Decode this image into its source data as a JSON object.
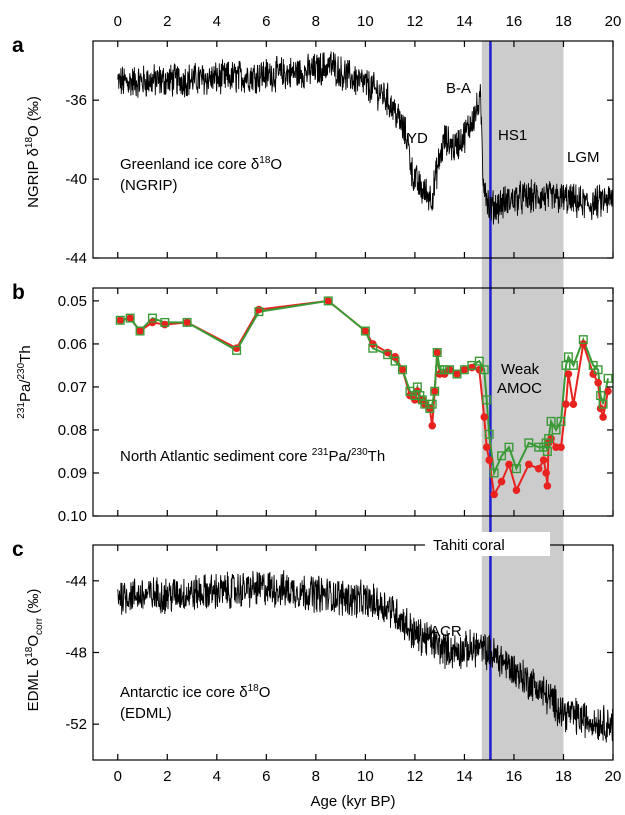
{
  "chart_data": [
    {
      "type": "line",
      "panel": "a",
      "ylabel": "NGRIP δ18O (‰)",
      "description": [
        "Greenland ice core δ18O",
        "(NGRIP)"
      ],
      "annotations": [
        "B-A",
        "YD",
        "HS1",
        "LGM"
      ],
      "xlim": [
        -1,
        20
      ],
      "ylim": [
        -44,
        -33
      ],
      "y_reversed": false,
      "yticks": [
        -36,
        -40,
        -44
      ],
      "xticks_top": [
        0,
        2,
        4,
        6,
        8,
        10,
        12,
        14,
        16,
        18,
        20
      ],
      "series": [
        {
          "color": "#000000",
          "anchors": [
            [
              0,
              -35.1
            ],
            [
              2,
              -35.0
            ],
            [
              4,
              -34.9
            ],
            [
              6,
              -34.7
            ],
            [
              7.5,
              -34.6
            ],
            [
              8.2,
              -34.4
            ],
            [
              8.6,
              -34.2
            ],
            [
              9,
              -34.6
            ],
            [
              10,
              -35.2
            ],
            [
              10.8,
              -35.8
            ],
            [
              11.3,
              -36.8
            ],
            [
              11.7,
              -38.0
            ],
            [
              11.9,
              -39.8
            ],
            [
              12.3,
              -40.6
            ],
            [
              12.7,
              -40.9
            ],
            [
              12.9,
              -39.5
            ],
            [
              13.2,
              -38.0
            ],
            [
              13.6,
              -38.4
            ],
            [
              14.0,
              -37.8
            ],
            [
              14.5,
              -36.5
            ],
            [
              14.65,
              -36.0
            ],
            [
              14.75,
              -39.8
            ],
            [
              15,
              -41.5
            ],
            [
              16,
              -41.0
            ],
            [
              17,
              -40.9
            ],
            [
              18,
              -41.0
            ],
            [
              19,
              -41.3
            ],
            [
              20,
              -41.0
            ]
          ],
          "noise": 0.75
        }
      ]
    },
    {
      "type": "line",
      "panel": "b",
      "ylabel": "231Pa/230Th",
      "description": "North Atlantic sediment core 231Pa/230Th",
      "annotations": [
        "Weak",
        "AMOC"
      ],
      "xlim": [
        -1,
        20
      ],
      "ylim": [
        0.047,
        0.1
      ],
      "y_reversed": true,
      "yticks": [
        0.05,
        0.06,
        0.07,
        0.08,
        0.09,
        0.1
      ],
      "ytick_labels": [
        "0.05",
        "0.06",
        "0.07",
        "0.08",
        "0.09",
        "0.10"
      ],
      "series": [
        {
          "color": "#e8231f",
          "marker": "circle",
          "x": [
            0.1,
            0.5,
            0.9,
            1.4,
            1.9,
            2.8,
            4.8,
            5.7,
            8.5,
            10.0,
            10.3,
            10.9,
            11.2,
            11.5,
            11.8,
            12.0,
            12.1,
            12.2,
            12.3,
            12.4,
            12.6,
            12.7,
            12.8,
            12.9,
            13.0,
            13.2,
            13.4,
            13.7,
            14.0,
            14.3,
            14.6,
            14.8,
            14.9,
            15.0,
            15.2,
            15.5,
            15.8,
            16.1,
            16.6,
            17.0,
            17.2,
            17.3,
            17.35,
            17.4,
            17.5,
            17.7,
            17.9,
            18.1,
            18.2,
            18.4,
            18.8,
            19.2,
            19.4,
            19.5,
            19.6,
            19.8
          ],
          "y": [
            0.0545,
            0.054,
            0.057,
            0.055,
            0.0555,
            0.055,
            0.061,
            0.052,
            0.05,
            0.057,
            0.06,
            0.062,
            0.063,
            0.066,
            0.072,
            0.073,
            0.071,
            0.073,
            0.073,
            0.074,
            0.075,
            0.079,
            0.071,
            0.062,
            0.067,
            0.067,
            0.066,
            0.067,
            0.066,
            0.0655,
            0.066,
            0.077,
            0.084,
            0.087,
            0.095,
            0.092,
            0.088,
            0.094,
            0.088,
            0.089,
            0.087,
            0.09,
            0.093,
            0.083,
            0.082,
            0.084,
            0.084,
            0.074,
            0.067,
            0.074,
            0.06,
            0.067,
            0.069,
            0.075,
            0.077,
            0.071
          ]
        },
        {
          "color": "#3a9a35",
          "marker": "square-open",
          "x": [
            0.1,
            0.5,
            0.9,
            1.4,
            1.9,
            2.8,
            4.8,
            5.7,
            8.5,
            10.0,
            10.3,
            10.9,
            11.2,
            11.5,
            11.8,
            12.0,
            12.1,
            12.2,
            12.3,
            12.4,
            12.6,
            12.7,
            12.8,
            12.9,
            13.0,
            13.2,
            13.4,
            13.7,
            14.0,
            14.3,
            14.6,
            14.8,
            14.9,
            15.0,
            15.2,
            15.5,
            15.8,
            16.1,
            16.6,
            17.0,
            17.2,
            17.3,
            17.35,
            17.4,
            17.5,
            17.7,
            17.9,
            18.1,
            18.2,
            18.4,
            18.8,
            19.2,
            19.4,
            19.5,
            19.6,
            19.8
          ],
          "y": [
            0.0545,
            0.054,
            0.057,
            0.054,
            0.055,
            0.055,
            0.0615,
            0.0525,
            0.05,
            0.057,
            0.061,
            0.0625,
            0.064,
            0.066,
            0.071,
            0.072,
            0.07,
            0.072,
            0.073,
            0.074,
            0.075,
            0.074,
            0.071,
            0.062,
            0.066,
            0.066,
            0.066,
            0.067,
            0.066,
            0.065,
            0.064,
            0.066,
            0.073,
            0.081,
            0.09,
            0.086,
            0.084,
            0.089,
            0.083,
            0.084,
            0.084,
            0.083,
            0.085,
            0.082,
            0.078,
            0.08,
            0.078,
            0.065,
            0.063,
            0.065,
            0.059,
            0.065,
            0.066,
            0.072,
            0.074,
            0.068
          ]
        }
      ]
    },
    {
      "type": "line",
      "panel": "c",
      "ylabel": "EDML δ18Ocorr (‰)",
      "description": [
        "Antarctic ice core δ18O",
        "(EDML)"
      ],
      "annotations": [
        "ACR"
      ],
      "xlim": [
        -1,
        20
      ],
      "ylim": [
        -54,
        -42
      ],
      "y_reversed": false,
      "yticks": [
        -44,
        -48,
        -52
      ],
      "xlabel": "Age (kyr BP)",
      "xticks_bottom": [
        0,
        2,
        4,
        6,
        8,
        10,
        12,
        14,
        16,
        18,
        20
      ],
      "series": [
        {
          "color": "#000000",
          "anchors": [
            [
              0,
              -44.8
            ],
            [
              2,
              -44.8
            ],
            [
              4,
              -44.6
            ],
            [
              6,
              -44.4
            ],
            [
              8,
              -44.7
            ],
            [
              10,
              -45.1
            ],
            [
              11,
              -45.5
            ],
            [
              11.5,
              -46.2
            ],
            [
              12,
              -47.0
            ],
            [
              12.5,
              -47.2
            ],
            [
              13,
              -47.7
            ],
            [
              13.5,
              -47.9
            ],
            [
              14,
              -47.9
            ],
            [
              14.5,
              -47.7
            ],
            [
              15,
              -48.0
            ],
            [
              15.5,
              -48.4
            ],
            [
              16,
              -49.0
            ],
            [
              17,
              -50.0
            ],
            [
              18,
              -51.3
            ],
            [
              19,
              -51.8
            ],
            [
              20,
              -52.0
            ]
          ],
          "noise": 0.9
        }
      ]
    }
  ],
  "panels": {
    "a": {
      "letter": "a",
      "ylabel_main": "NGRIP δ",
      "ylabel_sup": "18",
      "ylabel_tail": "O (‰)",
      "desc1_main": "Greenland ice core δ",
      "desc1_sup": "18",
      "desc1_tail": "O",
      "desc2": "(NGRIP)",
      "ann_ba": "B-A",
      "ann_yd": "YD",
      "ann_hs1": "HS1",
      "ann_lgm": "LGM"
    },
    "b": {
      "letter": "b",
      "ylabel_sup1": "231",
      "ylabel_m1": "Pa/",
      "ylabel_sup2": "230",
      "ylabel_m2": "Th",
      "desc_main": "North Atlantic sediment core ",
      "desc_sup1": "231",
      "desc_m1": "Pa/",
      "desc_sup2": "230",
      "desc_m2": "Th",
      "ann_weak": "Weak",
      "ann_amoc": "AMOC"
    },
    "c": {
      "letter": "c",
      "ylabel_main": "EDML δ",
      "ylabel_sup": "18",
      "ylabel_mid": "O",
      "ylabel_sub": "corr",
      "ylabel_tail": " (‰)",
      "desc1_main": "Antarctic ice core δ",
      "desc1_sup": "18",
      "desc1_tail": "O",
      "desc2": "(EDML)",
      "ann_acr": "ACR"
    }
  },
  "x_axis": {
    "label": "Age (kyr BP)"
  },
  "shading": {
    "x_range": [
      14.7,
      18.0
    ],
    "color": "#cccccc"
  },
  "marker_line": {
    "x": 15.05,
    "label": "Tahiti coral",
    "color": "#1f1fcc"
  }
}
